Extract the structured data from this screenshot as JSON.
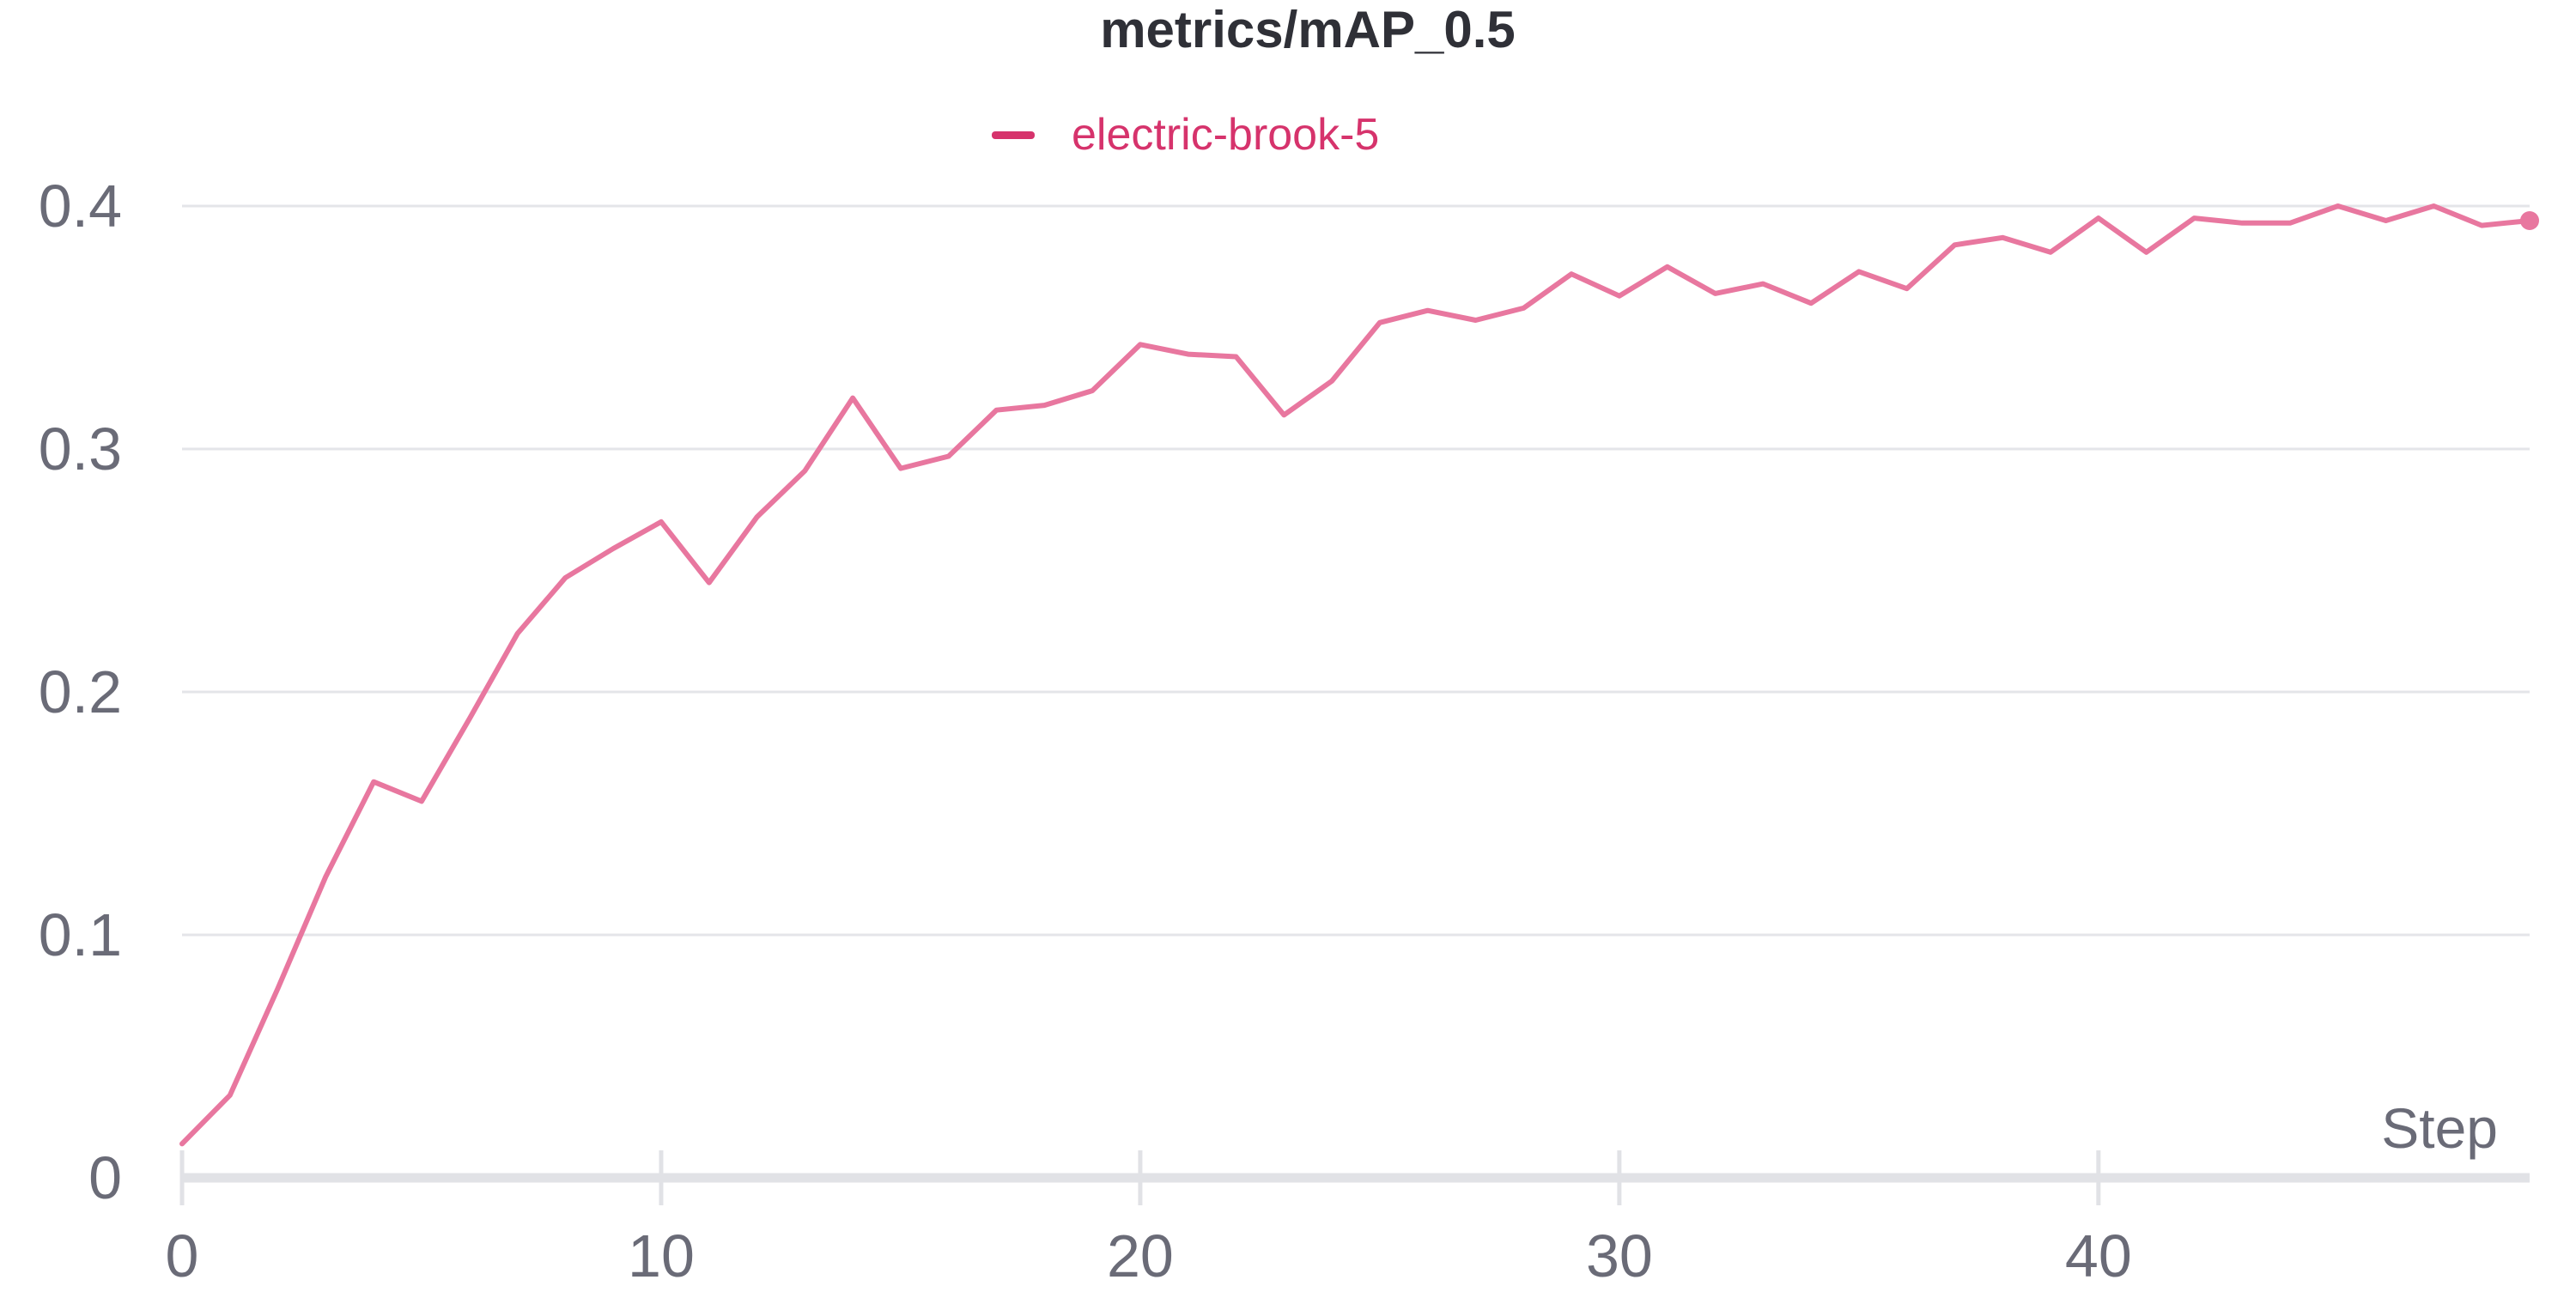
{
  "chart_data": {
    "type": "line",
    "title": "metrics/mAP_0.5",
    "xlabel": "Step",
    "ylabel": "",
    "xlim": [
      0,
      49
    ],
    "ylim": [
      0,
      0.4
    ],
    "x_ticks": [
      0,
      10,
      20,
      30,
      40
    ],
    "x_tick_labels": [
      "0",
      "10",
      "20",
      "30",
      "40"
    ],
    "y_ticks": [
      0,
      0.1,
      0.2,
      0.3,
      0.4
    ],
    "y_tick_labels": [
      "0",
      "0.1",
      "0.2",
      "0.3",
      "0.4"
    ],
    "grid": "horizontal",
    "legend_position": "top-center",
    "series": [
      {
        "name": "electric-brook-5",
        "color": "#e8779f",
        "legend_color": "#d6336c",
        "x": [
          0,
          1,
          2,
          3,
          4,
          5,
          6,
          7,
          8,
          9,
          10,
          11,
          12,
          13,
          14,
          15,
          16,
          17,
          18,
          19,
          20,
          21,
          22,
          23,
          24,
          25,
          26,
          27,
          28,
          29,
          30,
          31,
          32,
          33,
          34,
          35,
          36,
          37,
          38,
          39,
          40,
          41,
          42,
          43,
          44,
          45,
          46,
          47,
          48,
          49
        ],
        "values": [
          0.014,
          0.034,
          0.078,
          0.124,
          0.163,
          0.155,
          0.189,
          0.224,
          0.247,
          0.259,
          0.27,
          0.245,
          0.272,
          0.291,
          0.321,
          0.292,
          0.297,
          0.316,
          0.318,
          0.324,
          0.343,
          0.339,
          0.338,
          0.314,
          0.328,
          0.352,
          0.357,
          0.353,
          0.358,
          0.372,
          0.363,
          0.375,
          0.364,
          0.368,
          0.36,
          0.373,
          0.366,
          0.384,
          0.387,
          0.381,
          0.395,
          0.381,
          0.395,
          0.393,
          0.393,
          0.4,
          0.394,
          0.4,
          0.392,
          0.394
        ]
      }
    ]
  }
}
